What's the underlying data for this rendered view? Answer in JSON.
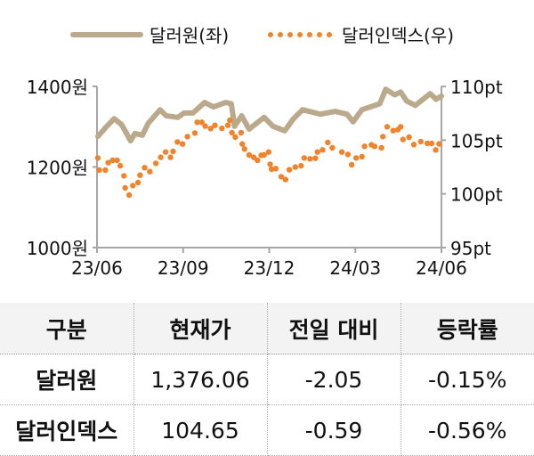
{
  "chart_data": {
    "type": "line",
    "legend_position": "top",
    "x_unit": "months since 2023-06",
    "x_ticks": [
      {
        "v": 0,
        "label": "23/06"
      },
      {
        "v": 3,
        "label": "23/09"
      },
      {
        "v": 6,
        "label": "23/12"
      },
      {
        "v": 9,
        "label": "24/03"
      },
      {
        "v": 12,
        "label": "24/06"
      }
    ],
    "y_left": {
      "min": 1000,
      "max": 1400,
      "ticks": [
        {
          "v": 1400,
          "label": "1400원"
        },
        {
          "v": 1200,
          "label": "1200원"
        },
        {
          "v": 1000,
          "label": "1000원"
        }
      ]
    },
    "y_right": {
      "min": 95,
      "max": 110,
      "ticks": [
        {
          "v": 110,
          "label": "110pt"
        },
        {
          "v": 105,
          "label": "105pt"
        },
        {
          "v": 100,
          "label": "100pt"
        },
        {
          "v": 95,
          "label": "95pt"
        }
      ]
    },
    "series": [
      {
        "name": "달러원(좌)",
        "axis": "left",
        "style": "line",
        "color": "#bba98b",
        "x": [
          0.03,
          0.34,
          0.6,
          0.86,
          1.17,
          1.32,
          1.58,
          1.79,
          2.2,
          2.41,
          2.82,
          3.03,
          3.34,
          3.75,
          4.06,
          4.48,
          4.68,
          4.79,
          5.04,
          5.3,
          5.82,
          6.13,
          6.54,
          6.85,
          7.16,
          7.78,
          8.3,
          8.71,
          8.92,
          9.23,
          9.85,
          10.06,
          10.37,
          10.58,
          10.78,
          11.09,
          11.61,
          11.81,
          12
        ],
        "y": [
          1276,
          1301,
          1320,
          1305,
          1265,
          1283,
          1279,
          1309,
          1342,
          1327,
          1323,
          1334,
          1334,
          1360,
          1349,
          1360,
          1357,
          1301,
          1327,
          1294,
          1323,
          1301,
          1290,
          1320,
          1342,
          1331,
          1338,
          1331,
          1312,
          1342,
          1357,
          1393,
          1379,
          1386,
          1364,
          1353,
          1382,
          1368,
          1376
        ]
      },
      {
        "name": "달러인덱스(우)",
        "axis": "right",
        "style": "dots",
        "color": "#f0842c",
        "x": [
          0.03,
          0.08,
          0.29,
          0.39,
          0.55,
          0.7,
          0.81,
          0.94,
          0.98,
          1.12,
          1.25,
          1.43,
          1.5,
          1.66,
          1.84,
          2.05,
          2.22,
          2.39,
          2.56,
          2.65,
          2.8,
          2.98,
          3.15,
          3.41,
          3.49,
          3.65,
          3.77,
          3.96,
          4.11,
          4.35,
          4.56,
          4.63,
          4.7,
          4.82,
          5.02,
          5.06,
          5.14,
          5.3,
          5.46,
          5.59,
          5.72,
          5.82,
          5.98,
          6.03,
          6.08,
          6.23,
          6.42,
          6.57,
          6.7,
          6.91,
          7.11,
          7.22,
          7.42,
          7.61,
          7.68,
          7.86,
          8.04,
          8.2,
          8.53,
          8.74,
          8.87,
          9.03,
          9.23,
          9.32,
          9.56,
          9.67,
          9.91,
          9.96,
          10.11,
          10.32,
          10.48,
          10.58,
          10.66,
          10.87,
          11.04,
          11.28,
          11.51,
          11.66,
          11.8,
          11.92
        ],
        "y": [
          103.34,
          102.21,
          102.21,
          102.9,
          103.12,
          103.12,
          102.62,
          101.68,
          100.55,
          99.89,
          100.77,
          101.05,
          101.74,
          102.43,
          102.07,
          102.84,
          103.4,
          103.89,
          103.4,
          103.95,
          104.83,
          104.64,
          105.33,
          105.66,
          106.66,
          106.66,
          106.3,
          106.08,
          106.38,
          106.1,
          106.38,
          106.85,
          105.69,
          105.28,
          105.69,
          104.64,
          104.17,
          103.62,
          103.4,
          103.12,
          103.59,
          103.62,
          103.89,
          102.76,
          102.29,
          102.35,
          101.6,
          101.33,
          102.24,
          102.49,
          102.62,
          103.34,
          103.26,
          103.31,
          103.89,
          104.09,
          104.78,
          104.28,
          103.89,
          103.67,
          102.71,
          103.34,
          103.45,
          104.42,
          104.56,
          104.42,
          104.28,
          105.33,
          106.24,
          105.88,
          105.97,
          106.24,
          105.06,
          105.28,
          104.59,
          104.86,
          104.7,
          104.7,
          104.09,
          104.65
        ]
      }
    ]
  },
  "table": {
    "headers": [
      "구분",
      "현재가",
      "전일 대비",
      "등락률"
    ],
    "rows": [
      [
        "달러원",
        "1,376.06",
        "-2.05",
        "-0.15%"
      ],
      [
        "달러인덱스",
        "104.65",
        "-0.59",
        "-0.56%"
      ]
    ]
  }
}
